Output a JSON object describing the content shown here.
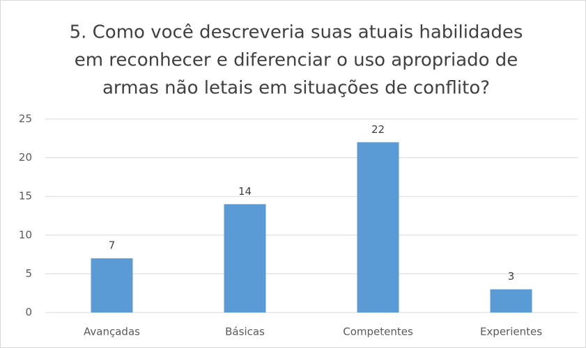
{
  "chart_data": {
    "type": "bar",
    "title": [
      "5. Como você descreveria suas atuais habilidades",
      "em reconhecer e diferenciar o uso apropriado de",
      "armas não letais em situações de conflito?"
    ],
    "categories": [
      "Avançadas",
      "Básicas",
      "Competentes",
      "Experientes"
    ],
    "values": [
      7,
      14,
      22,
      3
    ],
    "color": "#5b9bd5",
    "ylim": [
      0,
      25
    ],
    "yticks": [
      0,
      5,
      10,
      15,
      20,
      25
    ],
    "grid": true
  }
}
